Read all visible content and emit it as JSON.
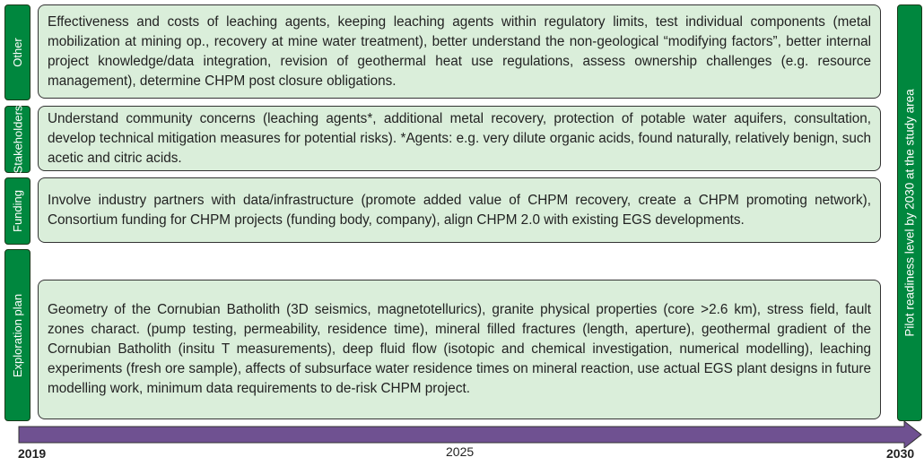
{
  "rows": [
    {
      "label": "Other",
      "text": "Effectiveness and costs of leaching agents, keeping leaching agents within regulatory limits, test individual components (metal mobilization at mining op., recovery at mine water treatment), better understand the non-geological “modifying factors”, better internal project knowledge/data integration, revision of geothermal heat use regulations, assess ownership challenges (e.g. resource management), determine CHPM post closure obligations."
    },
    {
      "label": "Stakeholders",
      "text": "Understand community concerns (leaching agents*, additional metal recovery, protection of potable water aquifers, consultation, develop technical mitigation measures for potential risks). *Agents: e.g. very dilute organic acids, found naturally, relatively benign, such acetic and citric acids."
    },
    {
      "label": "Funding",
      "text": "Involve industry partners with data/infrastructure (promote added value of CHPM recovery, create a CHPM promoting network), Consortium funding for CHPM projects (funding body, company), align CHPM 2.0 with existing EGS developments."
    },
    {
      "label": "Exploration plan",
      "text": "Geometry of the Cornubian Batholith (3D seismics, magnetotellurics), granite physical properties (core >2.6 km), stress field, fault zones charact. (pump testing, permeability, residence time), mineral filled fractures (length, aperture), geothermal gradient of the Cornubian Batholith (insitu T measurements), deep fluid flow (isotopic and chemical investigation, numerical modelling), leaching experiments (fresh ore sample), affects of subsurface water residence times on mineral reaction, use actual EGS plant designs in future modelling work, minimum data requirements to de-risk CHPM project."
    }
  ],
  "goal": "Pilot readiness level by 2030 at the study area",
  "timeline": {
    "start": "2019",
    "mid": "2025",
    "end": "2030"
  },
  "colors": {
    "label_green": "#00873e",
    "box_fill": "#daeeda",
    "arrow_purple": "#6f5191"
  }
}
